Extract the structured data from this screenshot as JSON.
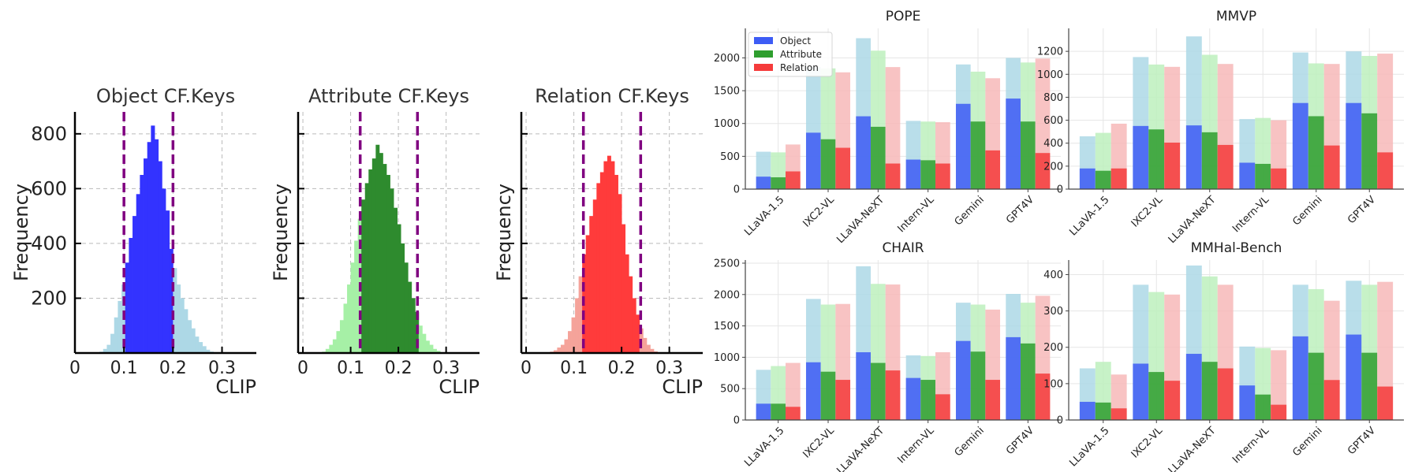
{
  "chart_data": [
    {
      "type": "histogram",
      "title": "Object CF.Keys",
      "xlabel": "CLIP",
      "ylabel": "Frequency",
      "xlim": [
        0,
        0.37
      ],
      "ylim": [
        0,
        880
      ],
      "xticks": [
        0,
        0.1,
        0.2,
        0.3
      ],
      "xtick_labels": [
        "0",
        "0.1",
        "0.2",
        "0.3"
      ],
      "yticks": [
        200,
        400,
        600,
        800
      ],
      "ytick_labels": [
        "200",
        "400",
        "600",
        "800"
      ],
      "grid": true,
      "bin_start": 0.05,
      "bin_width": 0.0075,
      "counts": [
        5,
        15,
        30,
        70,
        130,
        190,
        250,
        330,
        420,
        500,
        580,
        650,
        710,
        770,
        830,
        780,
        700,
        600,
        520,
        380,
        310,
        250,
        200,
        160,
        120,
        90,
        60,
        40,
        25,
        12,
        5
      ],
      "threshold_low": 0.1,
      "threshold_high": 0.2,
      "color_in": "#3333ff",
      "color_out": "#add8e6",
      "threshold_color": "#800080"
    },
    {
      "type": "histogram",
      "title": "Attribute CF.Keys",
      "xlabel": "CLIP",
      "ylabel": "Frequency",
      "xlim": [
        -0.01,
        0.37
      ],
      "ylim": [
        0,
        880
      ],
      "xticks": [
        0,
        0.1,
        0.2,
        0.3
      ],
      "xtick_labels": [
        "0",
        "0.1",
        "0.2",
        "0.3"
      ],
      "yticks": [
        200,
        400,
        600,
        800
      ],
      "ytick_labels": [
        "",
        "",
        "",
        ""
      ],
      "grid": true,
      "bin_start": 0.04,
      "bin_width": 0.0075,
      "counts": [
        5,
        15,
        30,
        50,
        80,
        120,
        180,
        250,
        330,
        410,
        490,
        560,
        620,
        670,
        710,
        760,
        730,
        690,
        650,
        600,
        530,
        470,
        400,
        330,
        260,
        200,
        150,
        100,
        70,
        45,
        30,
        15,
        8
      ],
      "threshold_low": 0.12,
      "threshold_high": 0.24,
      "color_in": "#2e8b2e",
      "color_out": "#a6f0a6",
      "threshold_color": "#800080"
    },
    {
      "type": "histogram",
      "title": "Relation CF.Keys",
      "xlabel": "CLIP",
      "ylabel": "Frequency",
      "xlim": [
        -0.01,
        0.37
      ],
      "ylim": [
        0,
        880
      ],
      "xticks": [
        0,
        0.1,
        0.2,
        0.3
      ],
      "xtick_labels": [
        "0",
        "0.1",
        "0.2",
        "0.3"
      ],
      "yticks": [
        200,
        400,
        600,
        800
      ],
      "ytick_labels": [
        "",
        "",
        "",
        ""
      ],
      "grid": true,
      "bin_start": 0.05,
      "bin_width": 0.0075,
      "counts": [
        5,
        10,
        20,
        30,
        50,
        80,
        130,
        200,
        280,
        360,
        430,
        500,
        560,
        620,
        660,
        700,
        720,
        700,
        650,
        580,
        470,
        360,
        280,
        200,
        140,
        90,
        55,
        30,
        15,
        6
      ],
      "threshold_low": 0.12,
      "threshold_high": 0.24,
      "color_in": "#ff3b3b",
      "color_out": "#f5a39a",
      "threshold_color": "#800080"
    },
    {
      "type": "bar",
      "title": "POPE",
      "categories": [
        "LLaVA-1.5",
        "IXC2-VL",
        "LLaVA-NeXT",
        "Intern-VL",
        "Gemini",
        "GPT4V"
      ],
      "yticks": [
        0,
        500,
        1000,
        1500,
        2000
      ],
      "ylim": [
        0,
        2450
      ],
      "legend": {
        "position": "top-left",
        "entries": [
          "Object",
          "Attribute",
          "Relation"
        ]
      },
      "series": [
        {
          "name": "Object",
          "values": [
            190,
            860,
            1110,
            450,
            1300,
            1380
          ],
          "totals": [
            570,
            1860,
            2300,
            1040,
            1900,
            2000
          ]
        },
        {
          "name": "Attribute",
          "values": [
            180,
            760,
            950,
            440,
            1030,
            1030
          ],
          "totals": [
            560,
            1840,
            2110,
            1030,
            1790,
            1930
          ]
        },
        {
          "name": "Relation",
          "values": [
            270,
            630,
            390,
            390,
            590,
            550
          ],
          "totals": [
            680,
            1780,
            1860,
            1020,
            1690,
            1990
          ]
        }
      ]
    },
    {
      "type": "bar",
      "title": "MMVP",
      "categories": [
        "LLaVA-1.5",
        "IXC2-VL",
        "LLaVA-NeXT",
        "Intern-VL",
        "Gemini",
        "GPT4V"
      ],
      "yticks": [
        0,
        200,
        400,
        600,
        800,
        1000,
        1200
      ],
      "ylim": [
        0,
        1400
      ],
      "series": [
        {
          "name": "Object",
          "values": [
            180,
            550,
            555,
            230,
            750,
            750
          ],
          "totals": [
            460,
            1150,
            1330,
            610,
            1190,
            1200
          ]
        },
        {
          "name": "Attribute",
          "values": [
            160,
            520,
            495,
            220,
            635,
            660
          ],
          "totals": [
            490,
            1085,
            1170,
            620,
            1095,
            1160
          ]
        },
        {
          "name": "Relation",
          "values": [
            180,
            405,
            385,
            180,
            380,
            320
          ],
          "totals": [
            570,
            1065,
            1090,
            600,
            1090,
            1180
          ]
        }
      ]
    },
    {
      "type": "bar",
      "title": "CHAIR",
      "categories": [
        "LLaVA-1.5",
        "IXC2-VL",
        "LLaVA-NeXT",
        "Intern-VL",
        "Gemini",
        "GPT4V"
      ],
      "yticks": [
        0,
        500,
        1000,
        1500,
        2000,
        2500
      ],
      "ylim": [
        0,
        2550
      ],
      "series": [
        {
          "name": "Object",
          "values": [
            260,
            920,
            1080,
            670,
            1260,
            1320
          ],
          "totals": [
            800,
            1930,
            2450,
            1030,
            1870,
            2010
          ]
        },
        {
          "name": "Attribute",
          "values": [
            260,
            770,
            910,
            640,
            1090,
            1220
          ],
          "totals": [
            860,
            1840,
            2170,
            1020,
            1840,
            1870
          ]
        },
        {
          "name": "Relation",
          "values": [
            210,
            640,
            790,
            410,
            640,
            740
          ],
          "totals": [
            910,
            1850,
            2160,
            1080,
            1760,
            1980
          ]
        }
      ]
    },
    {
      "type": "bar",
      "title": "MMHal-Bench",
      "categories": [
        "LLaVA-1.5",
        "IXC2-VL",
        "LLaVA-NeXT",
        "Intern-VL",
        "Gemini",
        "GPT4V"
      ],
      "yticks": [
        0,
        100,
        200,
        300,
        400
      ],
      "ylim": [
        0,
        440
      ],
      "series": [
        {
          "name": "Object",
          "values": [
            50,
            155,
            182,
            95,
            230,
            235
          ],
          "totals": [
            142,
            372,
            425,
            202,
            372,
            383
          ]
        },
        {
          "name": "Attribute",
          "values": [
            48,
            132,
            160,
            70,
            185,
            185
          ],
          "totals": [
            160,
            352,
            395,
            198,
            360,
            372
          ]
        },
        {
          "name": "Relation",
          "values": [
            32,
            108,
            142,
            42,
            110,
            92
          ],
          "totals": [
            125,
            345,
            372,
            192,
            328,
            380
          ]
        }
      ]
    }
  ],
  "colors": {
    "Object": "#3d5cf5",
    "Attribute": "#2e9e2e",
    "Relation": "#f53b3b",
    "Object_light": "#add8e6",
    "Attribute_light": "#bdf0bd",
    "Relation_light": "#f7b8b8"
  }
}
